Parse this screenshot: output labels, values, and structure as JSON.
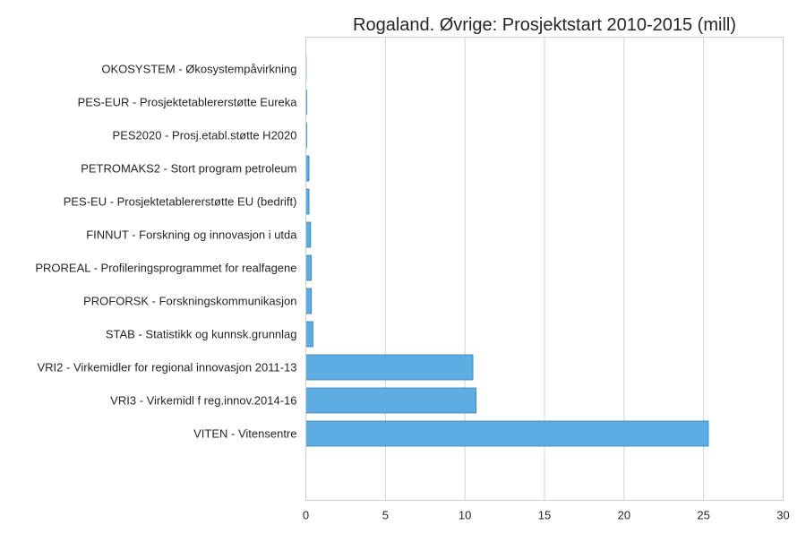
{
  "chart_data": {
    "type": "bar",
    "orientation": "horizontal",
    "title": "Rogaland. Øvrige: Prosjektstart 2010-2015 (mill)",
    "xlabel": "",
    "ylabel": "",
    "categories": [
      "OKOSYSTEM - Økosystempåvirkning",
      "PES-EUR - Prosjektetablererstøtte Eureka",
      "PES2020 - Prosj.etabl.støtte H2020",
      "PETROMAKS2 - Stort program petroleum",
      "PES-EU - Prosjektetablererstøtte EU (bedrift)",
      "FINNUT - Forskning og innovasjon i utda",
      "PROREAL - Profileringsprogrammet for realfagene",
      "PROFORSK - Forskningskommunikasjon",
      "STAB - Statistikk og kunnsk.grunnlag",
      "VRI2 - Virkemidler for regional innovasjon 2011-13",
      "VRI3 - Virkemidl f reg.innov.2014-16",
      "VITEN - Vitensentre"
    ],
    "values": [
      0.02,
      0.05,
      0.05,
      0.2,
      0.2,
      0.3,
      0.35,
      0.35,
      0.45,
      10.5,
      10.7,
      25.3
    ],
    "xlim": [
      0,
      30
    ],
    "xticks": [
      0,
      5,
      10,
      15,
      20,
      25,
      30
    ],
    "grid": "vertical",
    "legend": "none",
    "bar_color": "#5dade2",
    "bar_edge_color": "#3d7fae"
  }
}
